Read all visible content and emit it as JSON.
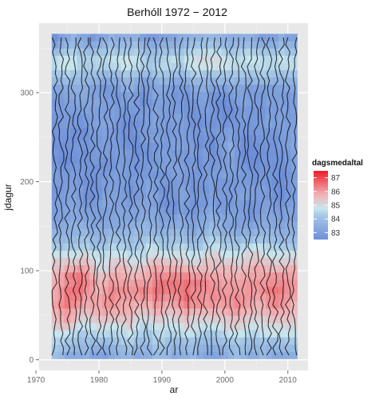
{
  "chart_data": {
    "type": "heatmap",
    "title": "Berhóll 1972 − 2012",
    "xlabel": "ar",
    "ylabel": "jdagur",
    "xlim": [
      1970.5,
      2013.2
    ],
    "ylim": [
      -12,
      378
    ],
    "x_ticks": [
      1970,
      1980,
      1990,
      2000,
      2010
    ],
    "y_ticks": [
      0,
      100,
      200,
      300
    ],
    "x_range": [
      1972.5,
      2011.5
    ],
    "y_range": [
      1,
      366
    ],
    "grid": true,
    "legend": {
      "title": "dagsmedaltal",
      "position": "right",
      "breaks": [
        87,
        86,
        85,
        84,
        83
      ],
      "range": [
        82.5,
        87.5
      ],
      "colors": [
        "#ef1c2a",
        "#f08a8f",
        "#bfe1ea",
        "#7ea0de"
      ]
    },
    "contours": "black"
  }
}
